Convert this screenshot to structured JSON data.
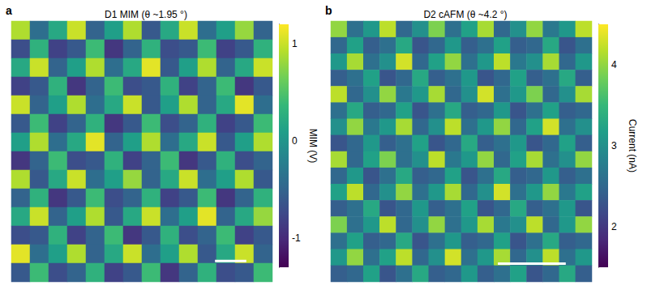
{
  "chart_data": [
    {
      "type": "heatmap",
      "panel": "a",
      "title": "D1 MIM (θ ~1.95 °)",
      "tick_labels": false,
      "cells": [
        [
          0.9,
          -0.4,
          0.2,
          1.0,
          -0.5,
          0.1,
          0.9,
          -0.6,
          0.2,
          1.0,
          -0.4,
          0.1,
          0.8,
          -0.5
        ],
        [
          -0.7,
          0.3,
          -0.8,
          -0.6,
          0.4,
          -0.9,
          -0.5,
          0.3,
          -0.7,
          -0.6,
          0.4,
          -0.8,
          -0.6,
          0.3
        ],
        [
          0.2,
          1.0,
          -0.5,
          0.1,
          0.9,
          -0.4,
          0.2,
          1.1,
          -0.6,
          0.1,
          0.9,
          -0.5,
          0.2,
          1.0
        ],
        [
          -0.8,
          -0.6,
          0.3,
          -0.9,
          -0.5,
          0.4,
          -0.7,
          -0.6,
          0.3,
          -0.8,
          -0.5,
          0.4,
          -0.9,
          -0.6
        ],
        [
          1.0,
          -0.5,
          0.1,
          0.9,
          -0.4,
          0.2,
          1.0,
          -0.6,
          0.1,
          0.9,
          -0.5,
          0.2,
          1.1,
          -0.4
        ],
        [
          -0.6,
          0.4,
          -0.8,
          -0.5,
          0.3,
          -0.9,
          -0.6,
          0.4,
          -0.7,
          -0.5,
          0.3,
          -0.8,
          -0.6,
          0.4
        ],
        [
          0.1,
          0.9,
          -0.4,
          0.2,
          1.1,
          -0.5,
          0.1,
          0.9,
          -0.4,
          0.2,
          1.0,
          -0.6,
          0.1,
          0.9
        ],
        [
          -0.9,
          -0.5,
          0.4,
          -0.7,
          -0.6,
          0.3,
          -0.8,
          -0.5,
          0.4,
          -0.9,
          -0.6,
          0.3,
          -0.7,
          -0.5
        ],
        [
          0.9,
          -0.6,
          0.2,
          1.0,
          -0.4,
          0.1,
          0.8,
          -0.5,
          0.2,
          1.0,
          -0.4,
          0.1,
          0.9,
          -0.6
        ],
        [
          -0.5,
          0.3,
          -0.9,
          -0.6,
          0.4,
          -0.7,
          -0.5,
          0.3,
          -0.8,
          -0.6,
          0.4,
          -0.9,
          -0.5,
          0.3
        ],
        [
          0.2,
          1.0,
          -0.5,
          0.1,
          0.9,
          -0.6,
          0.2,
          1.0,
          -0.4,
          0.1,
          1.1,
          -0.5,
          0.2,
          0.8
        ],
        [
          -0.7,
          -0.6,
          0.3,
          -0.8,
          -0.5,
          0.4,
          -0.9,
          -0.6,
          0.3,
          -0.7,
          -0.5,
          0.4,
          -0.8,
          -0.6
        ],
        [
          1.1,
          -0.4,
          0.1,
          0.9,
          -0.5,
          0.2,
          1.0,
          -0.4,
          0.1,
          0.9,
          -0.6,
          0.2,
          1.0,
          -0.5
        ],
        [
          -0.6,
          0.4,
          -0.7,
          -0.5,
          0.3,
          -0.8,
          -0.6,
          0.4,
          -0.9,
          -0.5,
          0.3,
          -0.7,
          -0.6,
          0.4
        ]
      ],
      "colorbar": {
        "label": "MIM (V)",
        "range": [
          -1.3,
          1.2
        ],
        "ticks": [
          -1,
          0,
          1
        ]
      }
    },
    {
      "type": "heatmap",
      "panel": "b",
      "title": "D2 cAFM (θ ~4.2 °)",
      "tick_labels": false,
      "cells": [
        [
          4.0,
          2.6,
          3.1,
          4.2,
          2.5,
          3.0,
          3.9,
          2.6,
          3.2,
          4.1,
          2.5,
          3.0,
          4.0,
          2.7,
          3.1,
          4.2
        ],
        [
          2.5,
          3.2,
          2.4,
          2.6,
          3.3,
          2.3,
          2.5,
          3.1,
          2.4,
          2.6,
          3.2,
          2.4,
          2.5,
          3.3,
          2.3,
          2.6
        ],
        [
          3.1,
          4.1,
          2.6,
          3.0,
          4.3,
          2.5,
          3.2,
          4.0,
          2.6,
          3.1,
          4.2,
          2.7,
          3.0,
          4.1,
          2.5,
          3.1
        ],
        [
          2.4,
          2.6,
          3.2,
          2.3,
          2.5,
          3.3,
          2.4,
          2.6,
          3.1,
          2.3,
          2.5,
          3.2,
          2.4,
          2.6,
          3.3,
          2.4
        ],
        [
          4.2,
          2.5,
          3.0,
          4.0,
          2.7,
          3.1,
          4.1,
          2.5,
          3.0,
          4.3,
          2.6,
          3.1,
          3.9,
          2.5,
          3.0,
          4.1
        ],
        [
          2.6,
          3.3,
          2.4,
          2.5,
          3.2,
          2.3,
          2.6,
          3.3,
          2.4,
          2.5,
          3.1,
          2.3,
          2.6,
          3.2,
          2.4,
          2.5
        ],
        [
          3.0,
          4.0,
          2.7,
          3.1,
          4.1,
          2.5,
          3.0,
          4.2,
          2.6,
          3.1,
          4.0,
          2.5,
          3.2,
          4.3,
          2.6,
          3.0
        ],
        [
          2.3,
          2.5,
          3.1,
          2.4,
          2.6,
          3.2,
          2.3,
          2.5,
          3.3,
          2.4,
          2.6,
          3.1,
          2.3,
          2.5,
          3.2,
          2.4
        ],
        [
          4.1,
          2.5,
          3.2,
          3.9,
          2.6,
          3.0,
          4.2,
          2.7,
          3.1,
          4.0,
          2.5,
          3.2,
          4.1,
          2.6,
          3.0,
          4.0
        ],
        [
          2.5,
          3.1,
          2.3,
          2.6,
          3.3,
          2.4,
          2.5,
          3.2,
          2.3,
          2.6,
          3.3,
          2.4,
          2.5,
          3.1,
          2.4,
          2.6
        ],
        [
          3.2,
          4.2,
          2.5,
          3.0,
          4.0,
          2.6,
          3.1,
          4.1,
          2.5,
          3.0,
          4.3,
          2.6,
          3.1,
          4.0,
          2.7,
          3.2
        ],
        [
          2.4,
          2.6,
          3.3,
          2.3,
          2.5,
          3.1,
          2.4,
          2.6,
          3.2,
          2.3,
          2.5,
          3.3,
          2.4,
          2.6,
          3.1,
          2.3
        ],
        [
          3.9,
          2.6,
          3.1,
          4.2,
          2.5,
          3.0,
          4.0,
          2.6,
          3.1,
          4.1,
          2.7,
          3.0,
          4.2,
          2.5,
          3.1,
          4.0
        ],
        [
          2.6,
          3.2,
          2.4,
          2.5,
          3.3,
          2.3,
          2.6,
          3.1,
          2.4,
          2.5,
          3.2,
          2.3,
          2.6,
          3.3,
          2.4,
          2.5
        ],
        [
          3.1,
          4.0,
          2.6,
          3.2,
          4.2,
          2.5,
          3.0,
          4.3,
          2.6,
          3.1,
          4.1,
          2.5,
          3.0,
          4.2,
          2.6,
          3.1
        ],
        [
          2.4,
          2.5,
          3.2,
          2.3,
          2.6,
          3.3,
          2.4,
          2.5,
          3.1,
          2.4,
          2.6,
          3.2,
          2.3,
          2.5,
          3.3,
          2.4
        ]
      ],
      "colorbar": {
        "label": "Current (nA)",
        "range": [
          1.5,
          4.5
        ],
        "ticks": [
          2,
          3,
          4
        ]
      }
    }
  ]
}
